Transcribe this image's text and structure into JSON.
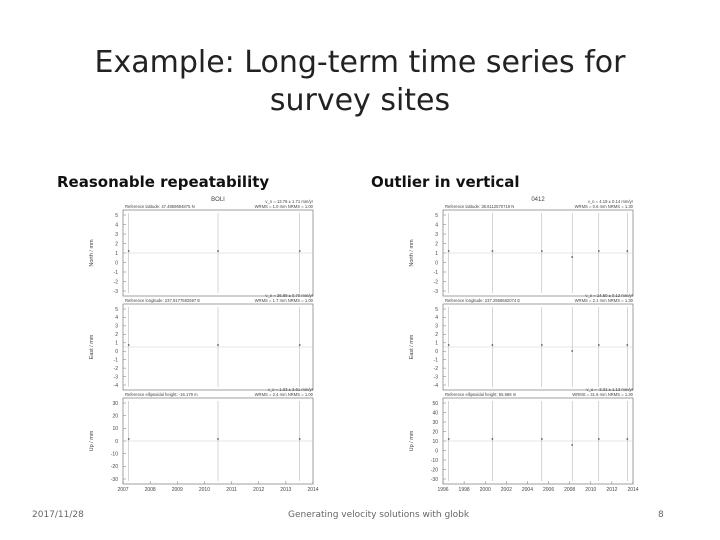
{
  "slide": {
    "title": "Example: Long-term time series for survey sites",
    "left_label": "Reasonable repeatability",
    "right_label": "Outlier in vertical",
    "footer_date": "2017/11/28",
    "footer_center": "Generating velocity solutions with globk",
    "page_number": "8"
  },
  "chart_data": [
    {
      "type": "scatter",
      "site": "BOLI",
      "x_ticks": [
        "2007",
        "2008",
        "2009",
        "2010",
        "2011",
        "2012",
        "2013",
        "2014"
      ],
      "panels": [
        {
          "ylabel": "North / mm",
          "reference": "Reference latitude: 47.4869694875 N",
          "rate": "v_n = 13.76 ± 1.71 mm/yr",
          "stats": "WRMS = 1.0 mm  NRMS = 1.00",
          "y_ticks": [
            "5",
            "4",
            "3",
            "2",
            "1",
            "0",
            "-1",
            "-2",
            "-3"
          ],
          "obs_x": [
            0.03,
            0.5,
            0.93
          ]
        },
        {
          "ylabel": "East / mm",
          "reference": "Reference longitude: 237.9177582697 E",
          "rate": "v_e = 26.89 ± 0.70 mm/yr",
          "stats": "WRMS = 1.7 mm  NRMS = 1.00",
          "y_ticks": [
            "5",
            "4",
            "3",
            "2",
            "1",
            "0",
            "-1",
            "-2",
            "-3",
            "-4"
          ],
          "obs_x": [
            0.03,
            0.5,
            0.93
          ]
        },
        {
          "ylabel": "Up / mm",
          "reference": "Reference ellipsoidal height: -16.179 m",
          "rate": "v_u = 1.03 ± 3.61 mm/yr",
          "stats": "WRMS = 2.4 mm  NRMS = 1.00",
          "y_ticks": [
            "30",
            "20",
            "10",
            "0",
            "-10",
            "-20",
            "-30"
          ],
          "obs_x": [
            0.03,
            0.5,
            0.93
          ]
        }
      ]
    },
    {
      "type": "scatter",
      "site": "0412",
      "x_ticks": [
        "1996",
        "1998",
        "2000",
        "2002",
        "2004",
        "2006",
        "2008",
        "2010",
        "2012",
        "2014"
      ],
      "panels": [
        {
          "ylabel": "North / mm",
          "reference": "Reference latitude: 38.6112570719 N",
          "rate": "v_n = 4.19 ± 0.14 mm/yr",
          "stats": "WRMS = 0.6 mm  NRMS = 1.30",
          "y_ticks": [
            "5",
            "4",
            "3",
            "2",
            "1",
            "0",
            "-1",
            "-2",
            "-3"
          ],
          "obs_x": [
            0.03,
            0.26,
            0.52,
            0.68,
            0.82,
            0.97
          ]
        },
        {
          "ylabel": "East / mm",
          "reference": "Reference longitude: 237.2958582074 E",
          "rate": "v_e = 24.50 ± 0.12 mm/yr",
          "stats": "WRMS = 2.1 mm  NRMS = 1.30",
          "y_ticks": [
            "5",
            "4",
            "3",
            "2",
            "1",
            "0",
            "-1",
            "-2",
            "-3",
            "-4"
          ],
          "obs_x": [
            0.03,
            0.26,
            0.52,
            0.68,
            0.82,
            0.97
          ]
        },
        {
          "ylabel": "Up / mm",
          "reference": "Reference ellipsoidal height: 55.688 m",
          "rate": "v_u = -3.31 ± 1.13 mm/yr",
          "stats": "WRMS = 31.6 mm  NRMS = 1.30",
          "y_ticks": [
            "50",
            "40",
            "30",
            "20",
            "10",
            "0",
            "-10",
            "-20",
            "-30"
          ],
          "obs_x": [
            0.03,
            0.26,
            0.52,
            0.68,
            0.82,
            0.97
          ]
        }
      ]
    }
  ]
}
